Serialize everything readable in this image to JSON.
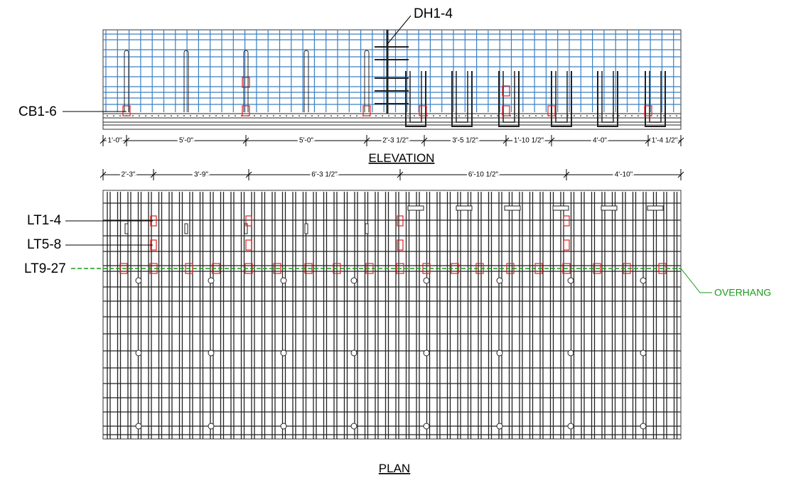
{
  "labels": {
    "dh": "DH1-4",
    "cb": "CB1-6",
    "lt1": "LT1-4",
    "lt5": "LT5-8",
    "lt9": "LT9-27",
    "overhang": "OVERHANG"
  },
  "elevation": {
    "title": "ELEVATION",
    "dimensions": [
      "1'-0\"",
      "5'-0\"",
      "5'-0\"",
      "2'-3 1/2\"",
      "3'-5 1/2\"",
      "1'-10 1/2\"",
      "4'-0\"",
      "1'-4 1/2\""
    ]
  },
  "plan": {
    "title": "PLAN",
    "dimensions": [
      "2'-3\"",
      "3'-9\"",
      "6'-3 1/2\"",
      "6'-10 1/2\"",
      "4'-10\""
    ]
  }
}
